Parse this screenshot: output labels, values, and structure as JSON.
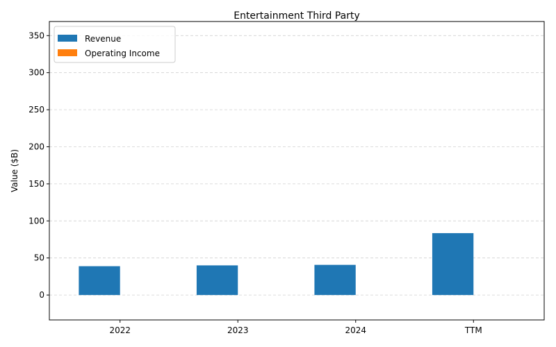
{
  "chart_data": {
    "type": "bar",
    "title": "Entertainment Third Party",
    "xlabel": "",
    "ylabel": "Value ($B)",
    "categories": [
      "2022",
      "2023",
      "2024",
      "TTM"
    ],
    "series": [
      {
        "name": "Revenue",
        "color": "#1f77b4",
        "values": [
          38.9,
          40.0,
          40.7,
          83.5
        ]
      },
      {
        "name": "Operating Income",
        "color": "#ff7f0e",
        "values": [
          0,
          0,
          0,
          0
        ]
      }
    ],
    "ylim": [
      -33.6,
      369
    ],
    "yticks": [
      0,
      50,
      100,
      150,
      200,
      250,
      300,
      350
    ],
    "grid": "y-dashed",
    "legend": "upper-left"
  }
}
